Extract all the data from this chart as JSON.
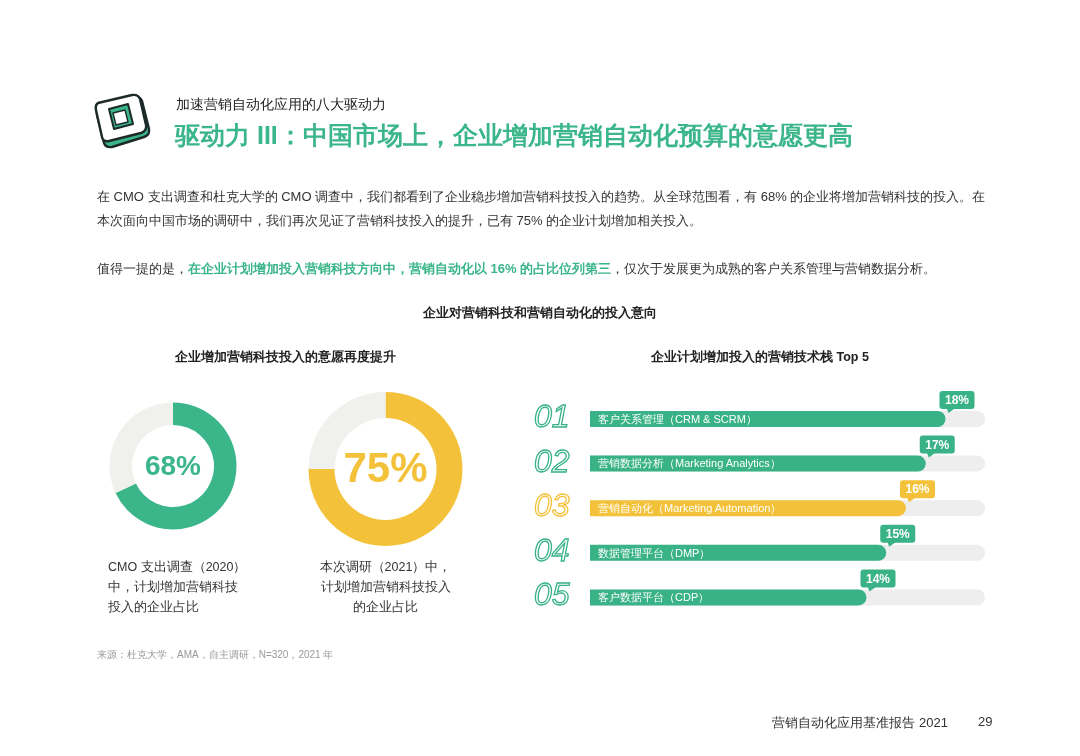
{
  "chart_data": [
    {
      "type": "other",
      "title": "驱动力 III：中国市场上，企业增加营销自动化预算的意愿更高",
      "subtitle": "加速营销自动化应用的八大驱动力",
      "annotations": [
        "在 CMO 支出调查和杜克大学的 CMO 调查中，我们都看到了企业稳步增加营销科技投入的趋势。从全球范围看，有 68% 的企业将增加营销科技的投入。在本次面向中国市场的调研中，我们再次见证了营销科技投入的提升，已有 75% 的企业计划增加相关投入。",
        "值得一提的是，",
        "在企业计划增加投入营销科技方向中，营销自动化以 16% 的占比位列第三",
        "，仅次于发展更为成熟的客户关系管理与营销数据分析。",
        "企业对营销科技和营销自动化的投入意向",
        "来源：杜克大学，AMA，自主调研，N=320，2021 年",
        "营销自动化应用基准报告 2021",
        "29"
      ]
    },
    {
      "type": "donut",
      "title": "企业增加营销科技投入的意愿再度提升",
      "categories": [
        null,
        null
      ],
      "values": [
        68,
        32
      ],
      "colors": [
        "#3bb58a",
        "#f0f0ec"
      ],
      "value_labels": [
        "68%",
        null
      ],
      "annotations": [
        "CMO 支出调查（2020）中，计划增加营销科技投入的企业占比"
      ]
    },
    {
      "type": "donut",
      "categories": [
        null,
        null
      ],
      "values": [
        75,
        25
      ],
      "colors": [
        "#f4c23a",
        "#f0f0ec"
      ],
      "value_labels": [
        "75%",
        null
      ],
      "annotations": [
        "本次调研（2021）中，计划增加营销科技投入的企业占比"
      ]
    },
    {
      "type": "bar",
      "orientation": "horizontal",
      "title": "企业计划增加投入的营销技术栈 Top 5",
      "categories": [
        "客户关系管理（CRM & SCRM）",
        "营销数据分析（Marketing Analytics）",
        "营销自动化（Marketing Automation）",
        "数据管理平台（DMP）",
        "客户数据平台（CDP）"
      ],
      "values": [
        18,
        17,
        16,
        15,
        14
      ],
      "colors": [
        "#38b286",
        "#38b286",
        "#f4c23a",
        "#38b286",
        "#38b286"
      ],
      "value_labels": [
        "18%",
        "17%",
        "16%",
        "15%",
        "14%"
      ],
      "tick_labels": "y",
      "annotations": [
        "01",
        "02",
        "03",
        "04",
        "05"
      ]
    }
  ]
}
